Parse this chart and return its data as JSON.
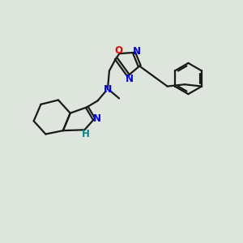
{
  "bg_color": "#dde5dd",
  "bond_color": "#1a1a1a",
  "n_color": "#0000ee",
  "o_color": "#ee0000",
  "nh_color": "#008888",
  "line_width": 1.6,
  "font_size": 8.5,
  "figsize": [
    3.0,
    3.0
  ],
  "dpi": 100,
  "xlim": [
    0,
    10
  ],
  "ylim": [
    0,
    10
  ]
}
